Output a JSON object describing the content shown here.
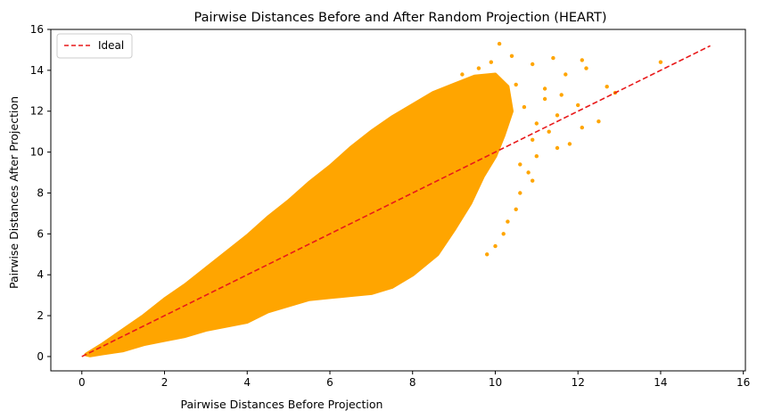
{
  "chart_data": {
    "type": "scatter",
    "title": "Pairwise Distances Before and After Random Projection (HEART)",
    "xlabel": "Pairwise Distances Before Projection",
    "ylabel": "Pairwise Distances After Projection",
    "xlim": [
      -0.75,
      16.05
    ],
    "ylim": [
      -0.7,
      16.0
    ],
    "xticks": [
      "0",
      "2",
      "4",
      "6",
      "8",
      "10",
      "12",
      "14",
      "16"
    ],
    "yticks": [
      "0",
      "2",
      "4",
      "6",
      "8",
      "10",
      "12",
      "14",
      "16"
    ],
    "grid": false,
    "legend": {
      "position": "upper-left",
      "entries": [
        {
          "label": "Ideal",
          "color": "#e8191a",
          "style": "dashed"
        }
      ]
    },
    "series": [
      {
        "kind": "scatter",
        "color": "#ffa500",
        "cloud_outline": [
          [
            0.1,
            0.1
          ],
          [
            0.5,
            0.6
          ],
          [
            1.0,
            1.3
          ],
          [
            1.5,
            2.0
          ],
          [
            2.0,
            2.8
          ],
          [
            2.5,
            3.5
          ],
          [
            3.0,
            4.3
          ],
          [
            3.5,
            5.1
          ],
          [
            4.0,
            5.9
          ],
          [
            4.5,
            6.8
          ],
          [
            5.0,
            7.6
          ],
          [
            5.5,
            8.5
          ],
          [
            6.0,
            9.3
          ],
          [
            6.5,
            10.2
          ],
          [
            7.0,
            11.0
          ],
          [
            7.5,
            11.7
          ],
          [
            8.0,
            12.3
          ],
          [
            8.5,
            12.9
          ],
          [
            9.0,
            13.3
          ],
          [
            9.5,
            13.7
          ],
          [
            10.0,
            13.8
          ],
          [
            10.3,
            13.2
          ],
          [
            10.4,
            12.0
          ],
          [
            10.2,
            10.8
          ],
          [
            10.0,
            9.8
          ],
          [
            9.7,
            8.8
          ],
          [
            9.4,
            7.5
          ],
          [
            9.0,
            6.2
          ],
          [
            8.6,
            5.0
          ],
          [
            8.0,
            4.0
          ],
          [
            7.5,
            3.4
          ],
          [
            7.0,
            3.1
          ],
          [
            6.5,
            3.0
          ],
          [
            6.0,
            2.9
          ],
          [
            5.5,
            2.8
          ],
          [
            5.0,
            2.5
          ],
          [
            4.5,
            2.2
          ],
          [
            4.0,
            1.7
          ],
          [
            3.5,
            1.5
          ],
          [
            3.0,
            1.3
          ],
          [
            2.5,
            1.0
          ],
          [
            2.0,
            0.8
          ],
          [
            1.5,
            0.6
          ],
          [
            1.0,
            0.3
          ],
          [
            0.5,
            0.15
          ],
          [
            0.2,
            0.05
          ]
        ],
        "outliers": [
          [
            10.1,
            15.3
          ],
          [
            10.4,
            14.7
          ],
          [
            10.9,
            14.3
          ],
          [
            11.4,
            14.6
          ],
          [
            12.1,
            14.5
          ],
          [
            12.2,
            14.1
          ],
          [
            11.7,
            13.8
          ],
          [
            12.0,
            12.3
          ],
          [
            12.5,
            11.5
          ],
          [
            12.7,
            13.2
          ],
          [
            12.9,
            12.9
          ],
          [
            14.0,
            14.4
          ],
          [
            11.2,
            12.6
          ],
          [
            11.6,
            12.8
          ],
          [
            12.1,
            11.2
          ],
          [
            11.3,
            11.0
          ],
          [
            10.9,
            10.6
          ],
          [
            11.8,
            10.4
          ],
          [
            11.5,
            11.8
          ],
          [
            11.0,
            9.8
          ],
          [
            10.8,
            9.0
          ],
          [
            10.6,
            8.0
          ],
          [
            10.5,
            7.2
          ],
          [
            10.3,
            6.6
          ],
          [
            10.2,
            6.0
          ],
          [
            10.0,
            5.4
          ],
          [
            9.8,
            5.0
          ],
          [
            10.6,
            9.4
          ],
          [
            10.9,
            8.6
          ],
          [
            11.0,
            11.4
          ],
          [
            11.5,
            10.2
          ],
          [
            10.7,
            12.2
          ],
          [
            10.5,
            13.3
          ],
          [
            9.6,
            14.1
          ],
          [
            9.2,
            13.8
          ],
          [
            9.9,
            14.4
          ],
          [
            11.2,
            13.1
          ]
        ]
      },
      {
        "kind": "line",
        "name": "Ideal",
        "color": "#e8191a",
        "style": "dashed",
        "x": [
          0,
          15.2
        ],
        "y": [
          0,
          15.2
        ]
      }
    ]
  }
}
